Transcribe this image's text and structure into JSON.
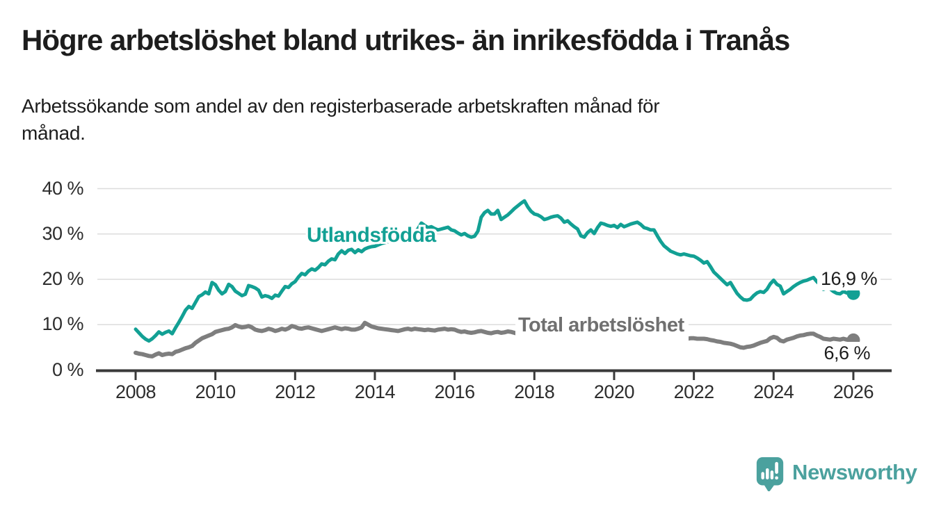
{
  "header": {
    "title": "Högre arbetslöshet bland utrikes- än inrikesfödda i Tranås",
    "subtitle_line1": "Arbetssökande som andel av den registerbaserade arbetskraften månad för",
    "subtitle_line2": "månad."
  },
  "footer": {
    "brand": "Newsworthy"
  },
  "colors": {
    "series_utlandsfodda": "#12A094",
    "series_total": "#7E7E7E",
    "label_total": "#707070",
    "gridline": "#DCDCDC",
    "axis": "#3A3A3A",
    "text": "#1d1d1d",
    "brand_teal": "#4BA19E"
  },
  "chart_data": {
    "type": "line",
    "title": "Högre arbetslöshet bland utrikes- än inrikesfödda i Tranås",
    "subtitle": "Arbetssökande som andel av den registerbaserade arbetskraften månad för månad.",
    "xlabel": "",
    "ylabel": "",
    "ylim": [
      0,
      40
    ],
    "xlim": [
      2007,
      2027
    ],
    "grid": true,
    "legend_position": "inline-labels",
    "x_unit": "year-monthly",
    "x_start_year": 2008,
    "x_months_per_step": 1,
    "x_ticks": [
      {
        "label": "2008",
        "value": 2008
      },
      {
        "label": "2010",
        "value": 2010
      },
      {
        "label": "2012",
        "value": 2012
      },
      {
        "label": "2014",
        "value": 2014
      },
      {
        "label": "2016",
        "value": 2016
      },
      {
        "label": "2018",
        "value": 2018
      },
      {
        "label": "2020",
        "value": 2020
      },
      {
        "label": "2022",
        "value": 2022
      },
      {
        "label": "2024",
        "value": 2024
      },
      {
        "label": "2026",
        "value": 2026
      }
    ],
    "y_ticks": [
      {
        "label": "0 %",
        "value": 0
      },
      {
        "label": "10 %",
        "value": 10
      },
      {
        "label": "20 %",
        "value": 20
      },
      {
        "label": "30 %",
        "value": 30
      },
      {
        "label": "40 %",
        "value": 40
      }
    ],
    "series": [
      {
        "name": "Utlandsfödda",
        "color": "#12A094",
        "end_label": "16,9 %",
        "end_value": 16.9,
        "values": [
          9.0,
          8.2,
          7.4,
          6.8,
          6.4,
          6.9,
          7.6,
          8.4,
          7.9,
          8.3,
          8.6,
          8.0,
          9.3,
          10.5,
          11.8,
          13.2,
          14.0,
          13.6,
          14.9,
          16.2,
          16.6,
          17.2,
          16.8,
          19.3,
          18.8,
          17.6,
          16.8,
          17.3,
          18.9,
          18.4,
          17.4,
          16.9,
          16.4,
          16.7,
          18.6,
          18.4,
          18.1,
          17.6,
          16.1,
          16.4,
          16.2,
          15.8,
          16.5,
          16.3,
          17.4,
          18.4,
          18.2,
          19.0,
          19.5,
          20.5,
          21.3,
          21.0,
          21.8,
          22.3,
          22.0,
          22.6,
          23.4,
          23.2,
          24.0,
          24.5,
          24.3,
          25.6,
          26.3,
          25.7,
          26.4,
          26.6,
          25.9,
          26.5,
          26.1,
          26.7,
          27.0,
          27.2,
          27.3,
          27.6,
          27.9,
          28.1,
          28.3,
          28.5,
          28.4,
          28.7,
          29.0,
          29.4,
          29.8,
          30.1,
          30.3,
          31.2,
          32.4,
          31.9,
          31.4,
          31.6,
          31.2,
          30.9,
          31.1,
          31.3,
          31.5,
          30.9,
          30.7,
          30.2,
          29.8,
          30.1,
          29.6,
          29.3,
          29.5,
          30.6,
          33.7,
          34.7,
          35.2,
          34.4,
          34.4,
          35.2,
          33.2,
          33.7,
          34.2,
          34.9,
          35.6,
          36.2,
          36.8,
          37.3,
          36.0,
          35.0,
          34.4,
          34.2,
          33.8,
          33.2,
          33.4,
          33.7,
          33.9,
          34.0,
          33.5,
          32.6,
          32.9,
          32.2,
          31.6,
          31.1,
          29.6,
          29.3,
          30.3,
          30.9,
          30.1,
          31.4,
          32.4,
          32.2,
          31.9,
          31.7,
          31.9,
          31.4,
          32.1,
          31.6,
          31.9,
          32.2,
          32.4,
          32.6,
          32.1,
          31.4,
          31.2,
          30.9,
          30.9,
          29.6,
          28.4,
          27.4,
          26.8,
          26.2,
          25.9,
          25.6,
          25.4,
          25.6,
          25.4,
          25.2,
          25.1,
          24.7,
          24.2,
          23.6,
          23.9,
          22.8,
          21.6,
          20.9,
          20.2,
          19.5,
          18.8,
          19.3,
          18.1,
          16.9,
          16.1,
          15.5,
          15.4,
          15.6,
          16.4,
          17.0,
          17.3,
          17.1,
          17.8,
          19.0,
          19.8,
          18.9,
          18.5,
          16.8,
          17.3,
          17.8,
          18.4,
          18.9,
          19.3,
          19.6,
          19.8,
          20.1,
          20.4,
          19.5,
          18.8,
          17.8,
          18.1,
          17.9,
          17.3,
          16.9,
          16.8,
          17.3,
          17.0,
          17.2,
          16.9
        ]
      },
      {
        "name": "Total arbetslöshet",
        "color": "#7E7E7E",
        "end_label": "6,6 %",
        "end_value": 6.6,
        "values": [
          3.8,
          3.6,
          3.5,
          3.3,
          3.1,
          3.0,
          3.4,
          3.7,
          3.3,
          3.5,
          3.6,
          3.5,
          4.0,
          4.2,
          4.5,
          4.8,
          5.0,
          5.3,
          6.0,
          6.5,
          7.0,
          7.3,
          7.6,
          7.9,
          8.4,
          8.6,
          8.8,
          9.0,
          9.1,
          9.4,
          9.9,
          9.6,
          9.4,
          9.5,
          9.7,
          9.4,
          8.9,
          8.7,
          8.6,
          8.8,
          9.1,
          8.9,
          8.6,
          8.8,
          9.1,
          8.9,
          9.2,
          9.7,
          9.5,
          9.2,
          9.1,
          9.3,
          9.4,
          9.2,
          9.0,
          8.8,
          8.6,
          8.8,
          9.0,
          9.2,
          9.4,
          9.2,
          9.0,
          9.2,
          9.1,
          8.9,
          8.9,
          9.1,
          9.4,
          10.4,
          10.0,
          9.6,
          9.4,
          9.2,
          9.1,
          9.0,
          8.9,
          8.8,
          8.7,
          8.6,
          8.8,
          9.0,
          9.1,
          8.9,
          9.1,
          9.0,
          8.9,
          8.8,
          8.9,
          8.8,
          8.7,
          8.9,
          9.0,
          9.1,
          8.9,
          9.0,
          8.9,
          8.6,
          8.4,
          8.5,
          8.3,
          8.2,
          8.3,
          8.5,
          8.6,
          8.4,
          8.2,
          8.1,
          8.3,
          8.4,
          8.2,
          8.3,
          8.5,
          8.4,
          8.2,
          8.0,
          7.9,
          7.8,
          7.7,
          7.6,
          7.6,
          7.5,
          7.4,
          7.3,
          7.4,
          7.3,
          7.2,
          7.1,
          7.2,
          7.1,
          7.0,
          7.1,
          7.1,
          7.0,
          6.9,
          7.0,
          6.9,
          6.8,
          6.9,
          7.0,
          7.1,
          7.0,
          7.1,
          7.2,
          7.3,
          7.4,
          7.8,
          8.3,
          8.5,
          8.4,
          8.3,
          8.2,
          8.0,
          7.9,
          7.8,
          7.7,
          7.6,
          7.5,
          7.4,
          7.3,
          7.2,
          7.1,
          7.0,
          7.0,
          6.9,
          7.0,
          6.9,
          7.0,
          7.0,
          6.9,
          6.9,
          6.9,
          6.8,
          6.6,
          6.5,
          6.3,
          6.2,
          6.0,
          5.9,
          5.8,
          5.6,
          5.3,
          5.0,
          4.9,
          5.1,
          5.2,
          5.4,
          5.7,
          6.0,
          6.2,
          6.4,
          7.0,
          7.3,
          7.1,
          6.5,
          6.3,
          6.7,
          6.9,
          7.1,
          7.4,
          7.6,
          7.7,
          7.9,
          8.0,
          8.0,
          7.6,
          7.3,
          6.9,
          6.8,
          6.7,
          6.9,
          6.8,
          6.7,
          6.9,
          6.7,
          6.8,
          6.6
        ]
      }
    ]
  }
}
